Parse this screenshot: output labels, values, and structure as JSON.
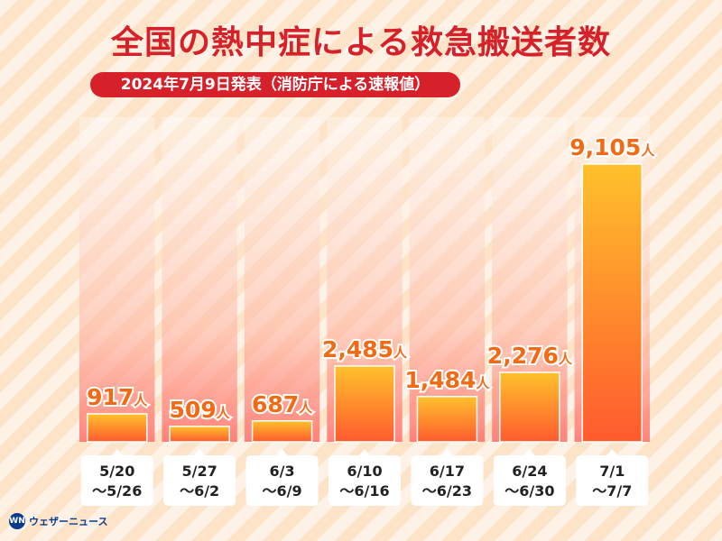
{
  "title": "全国の熱中症による救急搬送者数",
  "subtitle": "2024年7月9日発表（消防庁による速報値）",
  "logo_text": "ウェザーニュース",
  "logo_mark": "WN",
  "chart_data": {
    "type": "bar",
    "title": "全国の熱中症による救急搬送者数",
    "subtitle": "2024年7月9日発表（消防庁による速報値）",
    "categories": [
      [
        "5/20",
        "～5/26"
      ],
      [
        "5/27",
        "～6/2"
      ],
      [
        "6/3",
        "～6/9"
      ],
      [
        "6/10",
        "～6/16"
      ],
      [
        "6/17",
        "～6/23"
      ],
      [
        "6/24",
        "～6/30"
      ],
      [
        "7/1",
        "～7/7"
      ]
    ],
    "values": [
      917,
      509,
      687,
      2485,
      1484,
      2276,
      9105
    ],
    "value_labels": [
      "917",
      "509",
      "687",
      "2,485",
      "1,484",
      "2,276",
      "9,105"
    ],
    "unit": "人",
    "ylim": [
      0,
      10000
    ],
    "colors": {
      "title": "#d6202a",
      "bar_top": "#ffc12b",
      "bar_bottom": "#ff5a2e",
      "label": "#f26a14"
    }
  }
}
